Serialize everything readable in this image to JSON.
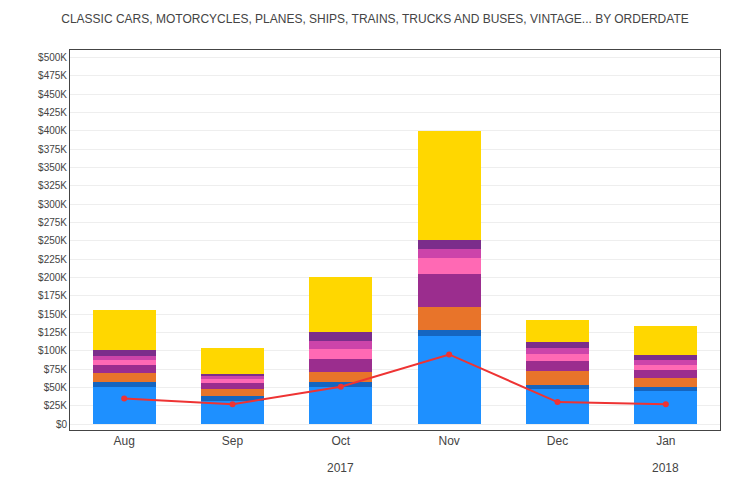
{
  "chart_data": {
    "type": "bar",
    "title": "CLASSIC CARS, MOTORCYCLES, PLANES, SHIPS, TRAINS, TRUCKS AND BUSES, VINTAGE... BY ORDERDATE",
    "categories": [
      "Aug",
      "Sep",
      "Oct",
      "Nov",
      "Dec",
      "Jan"
    ],
    "stacked": true,
    "grid": true,
    "series": [
      {
        "type": "bar",
        "color": "#1E90FF",
        "values": [
          50000,
          32000,
          50000,
          120000,
          48000,
          45000
        ]
      },
      {
        "type": "bar",
        "color": "#1565C0",
        "values": [
          8000,
          6000,
          7000,
          8000,
          6000,
          6000
        ]
      },
      {
        "type": "bar",
        "color": "#E8742A",
        "values": [
          12000,
          10000,
          14000,
          32000,
          18000,
          12000
        ]
      },
      {
        "type": "bar",
        "color": "#9B2D8E",
        "values": [
          10000,
          8000,
          18000,
          45000,
          14000,
          11000
        ]
      },
      {
        "type": "bar",
        "color": "#FF69B4",
        "values": [
          8000,
          5000,
          14000,
          22000,
          10000,
          7000
        ]
      },
      {
        "type": "bar",
        "color": "#CC44AA",
        "values": [
          5000,
          4000,
          10000,
          12000,
          8000,
          6000
        ]
      },
      {
        "type": "bar",
        "color": "#7B2D8B",
        "values": [
          8000,
          4000,
          12000,
          12000,
          8000,
          7000
        ]
      },
      {
        "type": "bar",
        "color": "#FFD700",
        "values": [
          55000,
          35000,
          75000,
          149000,
          30000,
          40000
        ]
      },
      {
        "type": "line",
        "color": "#EE3333",
        "marker": "circle",
        "values": [
          35000,
          27000,
          51000,
          95000,
          30000,
          27000
        ]
      }
    ],
    "ylim": [
      -8000,
      510000
    ],
    "yticks": [
      {
        "value": 0,
        "label": "$0"
      },
      {
        "value": 25000,
        "label": "$25K"
      },
      {
        "value": 50000,
        "label": "$50K"
      },
      {
        "value": 75000,
        "label": "$75K"
      },
      {
        "value": 100000,
        "label": "$100K"
      },
      {
        "value": 125000,
        "label": "$125K"
      },
      {
        "value": 150000,
        "label": "$150K"
      },
      {
        "value": 175000,
        "label": "$175K"
      },
      {
        "value": 200000,
        "label": "$200K"
      },
      {
        "value": 225000,
        "label": "$225K"
      },
      {
        "value": 250000,
        "label": "$250K"
      },
      {
        "value": 275000,
        "label": "$275K"
      },
      {
        "value": 300000,
        "label": "$300K"
      },
      {
        "value": 325000,
        "label": "$325K"
      },
      {
        "value": 350000,
        "label": "$350K"
      },
      {
        "value": 375000,
        "label": "$375K"
      },
      {
        "value": 400000,
        "label": "$400K"
      },
      {
        "value": 425000,
        "label": "$425K"
      },
      {
        "value": 450000,
        "label": "$450K"
      },
      {
        "value": 475000,
        "label": "$475K"
      },
      {
        "value": 500000,
        "label": "$500K"
      }
    ],
    "annotations": [
      {
        "text": "2017",
        "categories": [
          "Aug",
          "Sep",
          "Oct",
          "Nov",
          "Dec"
        ]
      },
      {
        "text": "2018",
        "categories": [
          "Jan"
        ]
      }
    ]
  }
}
